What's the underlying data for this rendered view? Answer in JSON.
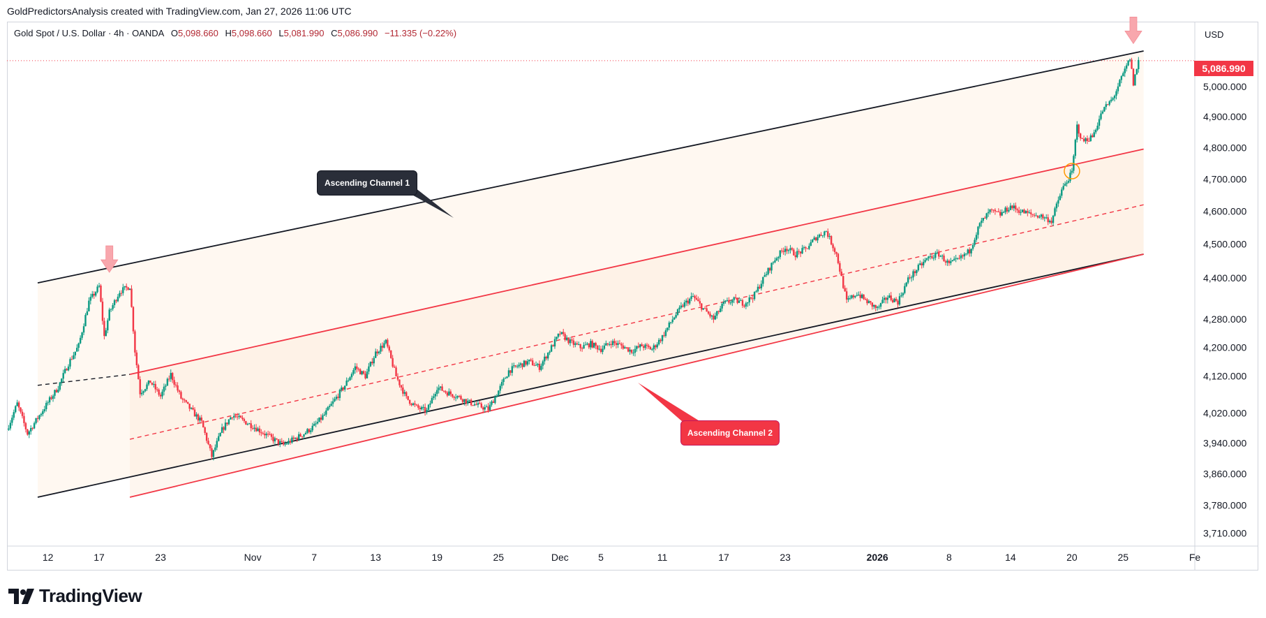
{
  "header": {
    "attribution": "GoldPredictorsAnalysis created with TradingView.com, Jan 27, 2026 11:06 UTC"
  },
  "legend": {
    "symbol": "Gold Spot / U.S. Dollar · 4h · OANDA",
    "open_label": "O",
    "open": "5,098.660",
    "high_label": "H",
    "high": "5,098.660",
    "low_label": "L",
    "low": "5,081.990",
    "close_label": "C",
    "close": "5,086.990",
    "change": "−11.335 (−0.22%)"
  },
  "price_axis": {
    "currency": "USD",
    "last_price": "5,086.990"
  },
  "annotations": {
    "channel_1_label": "Ascending Channel 1",
    "channel_2_label": "Ascending Channel 2"
  },
  "brand": {
    "name": "TradingView"
  },
  "colors": {
    "up": "#089981",
    "down": "#f23645",
    "channel1": "#131722",
    "channel2": "#f23645",
    "fill": "#fff5ec",
    "arrow": "#f8a7ad",
    "circle": "#ff9800"
  },
  "chart_data": {
    "type": "candlestick",
    "title": "Gold Spot / U.S. Dollar",
    "timeframe": "4h",
    "yscale": "log",
    "ylim": [
      3690,
      5180
    ],
    "xlim": [
      "2025-10-08",
      "2026-02-01"
    ],
    "y_ticks": [
      {
        "value": 5000,
        "label": "5,000.000"
      },
      {
        "value": 4900,
        "label": "4,900.000"
      },
      {
        "value": 4800,
        "label": "4,800.000"
      },
      {
        "value": 4700,
        "label": "4,700.000"
      },
      {
        "value": 4600,
        "label": "4,600.000"
      },
      {
        "value": 4500,
        "label": "4,500.000"
      },
      {
        "value": 4400,
        "label": "4,400.000"
      },
      {
        "value": 4280,
        "label": "4,280.000"
      },
      {
        "value": 4200,
        "label": "4,200.000"
      },
      {
        "value": 4120,
        "label": "4,120.000"
      },
      {
        "value": 4020,
        "label": "4,020.000"
      },
      {
        "value": 3940,
        "label": "3,940.000"
      },
      {
        "value": 3860,
        "label": "3,860.000"
      },
      {
        "value": 3780,
        "label": "3,780.000"
      },
      {
        "value": 3710,
        "label": "3,710.000"
      }
    ],
    "x_ticks": [
      {
        "date": "2025-10-12",
        "label": "12"
      },
      {
        "date": "2025-10-17",
        "label": "17"
      },
      {
        "date": "2025-10-23",
        "label": "23"
      },
      {
        "date": "2025-11-01",
        "label": "Nov"
      },
      {
        "date": "2025-11-07",
        "label": "7"
      },
      {
        "date": "2025-11-13",
        "label": "13"
      },
      {
        "date": "2025-11-19",
        "label": "19"
      },
      {
        "date": "2025-11-25",
        "label": "25"
      },
      {
        "date": "2025-12-01",
        "label": "Dec"
      },
      {
        "date": "2025-12-05",
        "label": "5"
      },
      {
        "date": "2025-12-11",
        "label": "11"
      },
      {
        "date": "2025-12-17",
        "label": "17"
      },
      {
        "date": "2025-12-23",
        "label": "23"
      },
      {
        "date": "2026-01-01",
        "label": "2026",
        "bold": true
      },
      {
        "date": "2026-01-08",
        "label": "8"
      },
      {
        "date": "2026-01-14",
        "label": "14"
      },
      {
        "date": "2026-01-20",
        "label": "20"
      },
      {
        "date": "2026-01-25",
        "label": "25"
      },
      {
        "date": "2026-02-01",
        "label": "Fe"
      }
    ],
    "path": [
      [
        "2025-10-08",
        3975
      ],
      [
        "2025-10-09",
        4045
      ],
      [
        "2025-10-10",
        3965
      ],
      [
        "2025-10-13",
        4090
      ],
      [
        "2025-10-14",
        4155
      ],
      [
        "2025-10-15",
        4205
      ],
      [
        "2025-10-16",
        4330
      ],
      [
        "2025-10-17",
        4375
      ],
      [
        "2025-10-17T12:00",
        4230
      ],
      [
        "2025-10-18",
        4300
      ],
      [
        "2025-10-19",
        4360
      ],
      [
        "2025-10-20",
        4375
      ],
      [
        "2025-10-20T12:00",
        4190
      ],
      [
        "2025-10-21",
        4075
      ],
      [
        "2025-10-22",
        4105
      ],
      [
        "2025-10-23",
        4065
      ],
      [
        "2025-10-24",
        4125
      ],
      [
        "2025-10-25",
        4060
      ],
      [
        "2025-10-27",
        3995
      ],
      [
        "2025-10-28",
        3905
      ],
      [
        "2025-10-29",
        3975
      ],
      [
        "2025-10-30",
        4015
      ],
      [
        "2025-11-01",
        3985
      ],
      [
        "2025-11-03",
        3950
      ],
      [
        "2025-11-04",
        3935
      ],
      [
        "2025-11-06",
        3965
      ],
      [
        "2025-11-07",
        3985
      ],
      [
        "2025-11-08",
        4015
      ],
      [
        "2025-11-10",
        4095
      ],
      [
        "2025-11-11",
        4145
      ],
      [
        "2025-11-12",
        4120
      ],
      [
        "2025-11-13",
        4185
      ],
      [
        "2025-11-14",
        4215
      ],
      [
        "2025-11-15",
        4120
      ],
      [
        "2025-11-16",
        4060
      ],
      [
        "2025-11-17",
        4035
      ],
      [
        "2025-11-18",
        4025
      ],
      [
        "2025-11-19",
        4090
      ],
      [
        "2025-11-20",
        4075
      ],
      [
        "2025-11-21",
        4065
      ],
      [
        "2025-11-22",
        4050
      ],
      [
        "2025-11-24",
        4030
      ],
      [
        "2025-11-25",
        4080
      ],
      [
        "2025-11-26",
        4135
      ],
      [
        "2025-11-27",
        4150
      ],
      [
        "2025-11-28",
        4160
      ],
      [
        "2025-11-29",
        4145
      ],
      [
        "2025-12-01",
        4240
      ],
      [
        "2025-12-02",
        4215
      ],
      [
        "2025-12-03",
        4200
      ],
      [
        "2025-12-04",
        4210
      ],
      [
        "2025-12-05",
        4195
      ],
      [
        "2025-12-06",
        4215
      ],
      [
        "2025-12-07",
        4205
      ],
      [
        "2025-12-08",
        4190
      ],
      [
        "2025-12-09",
        4205
      ],
      [
        "2025-12-10",
        4195
      ],
      [
        "2025-12-11",
        4230
      ],
      [
        "2025-12-12",
        4280
      ],
      [
        "2025-12-13",
        4320
      ],
      [
        "2025-12-14",
        4345
      ],
      [
        "2025-12-15",
        4310
      ],
      [
        "2025-12-16",
        4280
      ],
      [
        "2025-12-17",
        4325
      ],
      [
        "2025-12-18",
        4335
      ],
      [
        "2025-12-19",
        4325
      ],
      [
        "2025-12-20",
        4350
      ],
      [
        "2025-12-21",
        4405
      ],
      [
        "2025-12-22",
        4455
      ],
      [
        "2025-12-23",
        4490
      ],
      [
        "2025-12-24",
        4470
      ],
      [
        "2025-12-25",
        4485
      ],
      [
        "2025-12-26",
        4520
      ],
      [
        "2025-12-27",
        4540
      ],
      [
        "2025-12-28",
        4470
      ],
      [
        "2025-12-29",
        4330
      ],
      [
        "2025-12-30",
        4355
      ],
      [
        "2025-12-31",
        4330
      ],
      [
        "2026-01-01",
        4310
      ],
      [
        "2026-01-02",
        4345
      ],
      [
        "2026-01-03",
        4330
      ],
      [
        "2026-01-04",
        4395
      ],
      [
        "2026-01-05",
        4430
      ],
      [
        "2026-01-06",
        4460
      ],
      [
        "2026-01-07",
        4470
      ],
      [
        "2026-01-08",
        4440
      ],
      [
        "2026-01-09",
        4455
      ],
      [
        "2026-01-10",
        4480
      ],
      [
        "2026-01-11",
        4560
      ],
      [
        "2026-01-12",
        4600
      ],
      [
        "2026-01-13",
        4590
      ],
      [
        "2026-01-14",
        4615
      ],
      [
        "2026-01-15",
        4600
      ],
      [
        "2026-01-16",
        4590
      ],
      [
        "2026-01-17",
        4585
      ],
      [
        "2026-01-18",
        4570
      ],
      [
        "2026-01-19",
        4665
      ],
      [
        "2026-01-20",
        4720
      ],
      [
        "2026-01-20T12:00",
        4870
      ],
      [
        "2026-01-21",
        4820
      ],
      [
        "2026-01-22",
        4835
      ],
      [
        "2026-01-23",
        4920
      ],
      [
        "2026-01-24",
        4960
      ],
      [
        "2026-01-25",
        5040
      ],
      [
        "2026-01-25T16:00",
        5095
      ],
      [
        "2026-01-26",
        5010
      ],
      [
        "2026-01-26T12:00",
        5087
      ]
    ],
    "series": [
      {
        "name": "Ascending Channel 1",
        "color": "#131722",
        "style": "solid",
        "start": [
          "2025-10-11",
          4385
        ],
        "end": [
          "2026-01-27",
          5120
        ]
      },
      {
        "name": "Ascending Channel 1",
        "color": "#131722",
        "style": "solid",
        "start": [
          "2025-10-11",
          3800
        ],
        "end": [
          "2026-01-27",
          4470
        ]
      },
      {
        "color": "#131722",
        "style": "dashed",
        "start": [
          "2025-10-11",
          4095
        ],
        "end": [
          "2025-10-20",
          4125
        ]
      },
      {
        "name": "Ascending Channel 2",
        "color": "#f23645",
        "style": "solid",
        "start": [
          "2025-10-20",
          4125
        ],
        "end": [
          "2026-01-27",
          4795
        ]
      },
      {
        "name": "Ascending Channel 2",
        "color": "#f23645",
        "style": "dashed",
        "start": [
          "2025-10-20",
          3950
        ],
        "end": [
          "2026-01-27",
          4620
        ]
      },
      {
        "name": "Ascending Channel 2",
        "color": "#f23645",
        "style": "solid",
        "start": [
          "2025-10-20",
          3800
        ],
        "end": [
          "2026-01-27",
          4470
        ]
      }
    ],
    "markers": [
      {
        "type": "arrow-down",
        "date": "2025-10-18",
        "price": 4420
      },
      {
        "type": "arrow-down",
        "date": "2026-01-26",
        "price": 5150
      },
      {
        "type": "circle",
        "date": "2026-01-20",
        "price": 4725
      }
    ]
  }
}
